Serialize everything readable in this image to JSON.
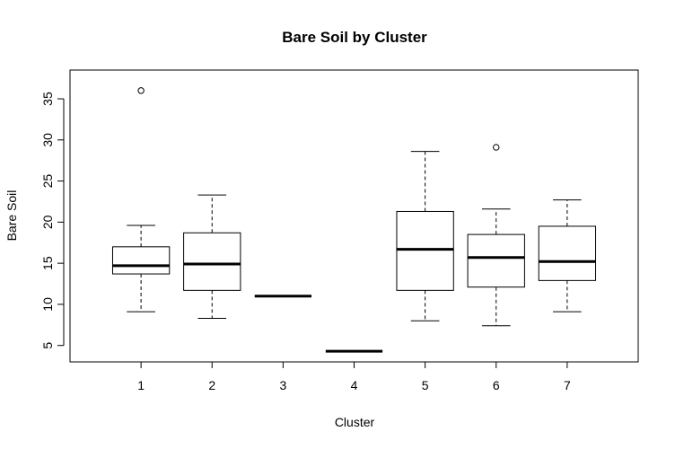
{
  "chart_data": {
    "type": "boxplot",
    "title": "Bare Soil by Cluster",
    "xlabel": "Cluster",
    "ylabel": "Bare Soil",
    "ylim": [
      3,
      38.5
    ],
    "yticks": [
      5,
      10,
      15,
      20,
      25,
      30,
      35
    ],
    "categories": [
      "1",
      "2",
      "3",
      "4",
      "5",
      "6",
      "7"
    ],
    "boxes": [
      {
        "category": "1",
        "min": 9.1,
        "q1": 13.7,
        "median": 14.7,
        "q3": 17.0,
        "max": 19.6,
        "outliers": [
          36.0
        ]
      },
      {
        "category": "2",
        "min": 8.3,
        "q1": 11.7,
        "median": 14.9,
        "q3": 18.7,
        "max": 23.3,
        "outliers": []
      },
      {
        "category": "3",
        "min": 11.0,
        "q1": 11.0,
        "median": 11.0,
        "q3": 11.0,
        "max": 11.0,
        "outliers": []
      },
      {
        "category": "4",
        "min": 4.3,
        "q1": 4.3,
        "median": 4.3,
        "q3": 4.3,
        "max": 4.3,
        "outliers": []
      },
      {
        "category": "5",
        "min": 8.0,
        "q1": 11.7,
        "median": 16.7,
        "q3": 21.3,
        "max": 28.6,
        "outliers": []
      },
      {
        "category": "6",
        "min": 7.4,
        "q1": 12.1,
        "median": 15.7,
        "q3": 18.5,
        "max": 21.6,
        "outliers": [
          29.1
        ]
      },
      {
        "category": "7",
        "min": 9.1,
        "q1": 12.9,
        "median": 15.2,
        "q3": 19.5,
        "max": 22.7,
        "outliers": []
      }
    ],
    "grid": false,
    "legend": "none",
    "colors": {
      "box_fill": "#ffffff",
      "stroke": "#000000"
    }
  }
}
